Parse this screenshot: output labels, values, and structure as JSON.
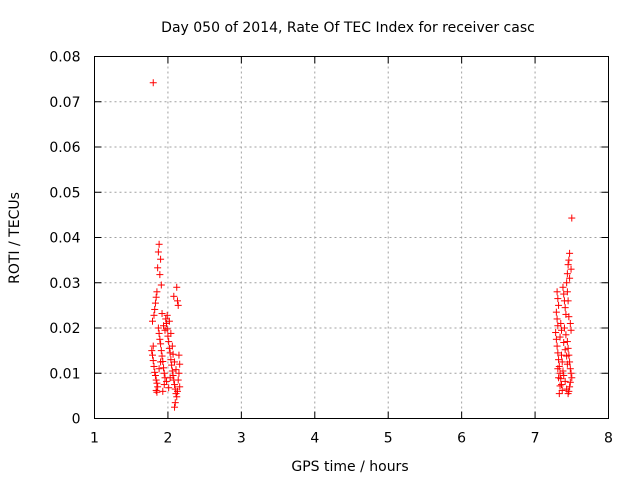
{
  "chart_data": {
    "type": "scatter",
    "title": "Day 050 of 2014, Rate Of TEC Index for receiver casc",
    "xlabel": "GPS time / hours",
    "ylabel": "ROTI / TECUs",
    "xlim": [
      1,
      8
    ],
    "ylim": [
      0,
      0.08
    ],
    "xticks": [
      1,
      2,
      3,
      4,
      5,
      6,
      7,
      8
    ],
    "yticks": [
      0,
      0.01,
      0.02,
      0.03,
      0.04,
      0.05,
      0.06,
      0.07,
      0.08
    ],
    "xtick_labels": [
      "1",
      "2",
      "3",
      "4",
      "5",
      "6",
      "7",
      "8"
    ],
    "ytick_labels": [
      "0",
      "0.01",
      "0.02",
      "0.03",
      "0.04",
      "0.05",
      "0.06",
      "0.07",
      "0.08"
    ],
    "grid": true,
    "marker": "+",
    "color": "#ff0000",
    "series": [
      {
        "name": "ROTI",
        "points": [
          [
            1.8,
            0.0742
          ],
          [
            1.88,
            0.0385
          ],
          [
            1.87,
            0.0368
          ],
          [
            1.9,
            0.0352
          ],
          [
            1.86,
            0.0333
          ],
          [
            1.89,
            0.0318
          ],
          [
            1.91,
            0.0295
          ],
          [
            1.85,
            0.028
          ],
          [
            1.84,
            0.0268
          ],
          [
            1.83,
            0.0255
          ],
          [
            1.82,
            0.0241
          ],
          [
            1.81,
            0.0228
          ],
          [
            1.79,
            0.0215
          ],
          [
            1.8,
            0.016
          ],
          [
            1.78,
            0.015
          ],
          [
            1.79,
            0.014
          ],
          [
            1.8,
            0.0128
          ],
          [
            1.81,
            0.0115
          ],
          [
            1.82,
            0.0102
          ],
          [
            1.83,
            0.0095
          ],
          [
            1.84,
            0.0085
          ],
          [
            1.85,
            0.0078
          ],
          [
            1.86,
            0.007
          ],
          [
            1.84,
            0.0062
          ],
          [
            1.85,
            0.0058
          ],
          [
            1.87,
            0.02
          ],
          [
            1.88,
            0.0188
          ],
          [
            1.89,
            0.0175
          ],
          [
            1.9,
            0.0165
          ],
          [
            1.91,
            0.015
          ],
          [
            1.92,
            0.0138
          ],
          [
            1.93,
            0.0126
          ],
          [
            1.94,
            0.0112
          ],
          [
            1.95,
            0.01
          ],
          [
            1.96,
            0.009
          ],
          [
            1.97,
            0.022
          ],
          [
            1.98,
            0.021
          ],
          [
            1.99,
            0.0198
          ],
          [
            2.0,
            0.0182
          ],
          [
            2.01,
            0.017
          ],
          [
            2.02,
            0.0155
          ],
          [
            2.03,
            0.0145
          ],
          [
            2.04,
            0.013
          ],
          [
            2.05,
            0.0118
          ],
          [
            2.06,
            0.0105
          ],
          [
            2.07,
            0.0095
          ],
          [
            2.08,
            0.0085
          ],
          [
            2.09,
            0.0075
          ],
          [
            2.1,
            0.0065
          ],
          [
            2.11,
            0.0055
          ],
          [
            2.12,
            0.0048
          ],
          [
            2.1,
            0.0035
          ],
          [
            2.09,
            0.0025
          ],
          [
            2.13,
            0.026
          ],
          [
            2.14,
            0.025
          ],
          [
            2.12,
            0.029
          ],
          [
            2.08,
            0.027
          ],
          [
            2.15,
            0.014
          ],
          [
            2.16,
            0.012
          ],
          [
            2.15,
            0.01
          ],
          [
            2.14,
            0.0085
          ],
          [
            2.16,
            0.007
          ],
          [
            2.13,
            0.006
          ],
          [
            1.93,
            0.006
          ],
          [
            1.95,
            0.0075
          ],
          [
            1.98,
            0.0082
          ],
          [
            2.01,
            0.0068
          ],
          [
            2.03,
            0.009
          ],
          [
            1.88,
            0.011
          ],
          [
            1.9,
            0.0125
          ],
          [
            1.92,
            0.0232
          ],
          [
            1.94,
            0.0205
          ],
          [
            1.96,
            0.0195
          ],
          [
            1.99,
            0.0228
          ],
          [
            2.02,
            0.0215
          ],
          [
            2.04,
            0.0188
          ],
          [
            2.06,
            0.016
          ],
          [
            2.07,
            0.0142
          ],
          [
            2.09,
            0.0125
          ],
          [
            2.11,
            0.0108
          ],
          [
            7.3,
            0.028
          ],
          [
            7.31,
            0.0265
          ],
          [
            7.32,
            0.025
          ],
          [
            7.29,
            0.0235
          ],
          [
            7.3,
            0.022
          ],
          [
            7.31,
            0.0205
          ],
          [
            7.28,
            0.019
          ],
          [
            7.29,
            0.0175
          ],
          [
            7.3,
            0.016
          ],
          [
            7.31,
            0.0145
          ],
          [
            7.32,
            0.013
          ],
          [
            7.33,
            0.0115
          ],
          [
            7.34,
            0.01
          ],
          [
            7.35,
            0.0088
          ],
          [
            7.36,
            0.0075
          ],
          [
            7.37,
            0.0062
          ],
          [
            7.33,
            0.0055
          ],
          [
            7.38,
            0.029
          ],
          [
            7.39,
            0.0275
          ],
          [
            7.4,
            0.026
          ],
          [
            7.41,
            0.0245
          ],
          [
            7.42,
            0.023
          ],
          [
            7.43,
            0.03
          ],
          [
            7.44,
            0.032
          ],
          [
            7.45,
            0.034
          ],
          [
            7.46,
            0.035
          ],
          [
            7.47,
            0.0365
          ],
          [
            7.5,
            0.0443
          ],
          [
            7.4,
            0.02
          ],
          [
            7.42,
            0.0185
          ],
          [
            7.44,
            0.017
          ],
          [
            7.45,
            0.0155
          ],
          [
            7.46,
            0.014
          ],
          [
            7.47,
            0.0125
          ],
          [
            7.48,
            0.011
          ],
          [
            7.49,
            0.01
          ],
          [
            7.5,
            0.009
          ],
          [
            7.48,
            0.008
          ],
          [
            7.47,
            0.007
          ],
          [
            7.46,
            0.006
          ],
          [
            7.45,
            0.0055
          ],
          [
            7.36,
            0.014
          ],
          [
            7.37,
            0.0125
          ],
          [
            7.38,
            0.0105
          ],
          [
            7.39,
            0.0095
          ],
          [
            7.41,
            0.0082
          ],
          [
            7.43,
            0.0065
          ],
          [
            7.35,
            0.021
          ],
          [
            7.36,
            0.0195
          ],
          [
            7.34,
            0.018
          ],
          [
            7.39,
            0.0168
          ],
          [
            7.41,
            0.0152
          ],
          [
            7.43,
            0.0138
          ],
          [
            7.44,
            0.012
          ],
          [
            7.49,
            0.0195
          ],
          [
            7.48,
            0.021
          ],
          [
            7.46,
            0.0225
          ],
          [
            7.45,
            0.026
          ],
          [
            7.44,
            0.028
          ],
          [
            7.47,
            0.031
          ],
          [
            7.49,
            0.033
          ],
          [
            7.32,
            0.009
          ],
          [
            7.34,
            0.0072
          ],
          [
            7.31,
            0.011
          ]
        ]
      }
    ]
  }
}
